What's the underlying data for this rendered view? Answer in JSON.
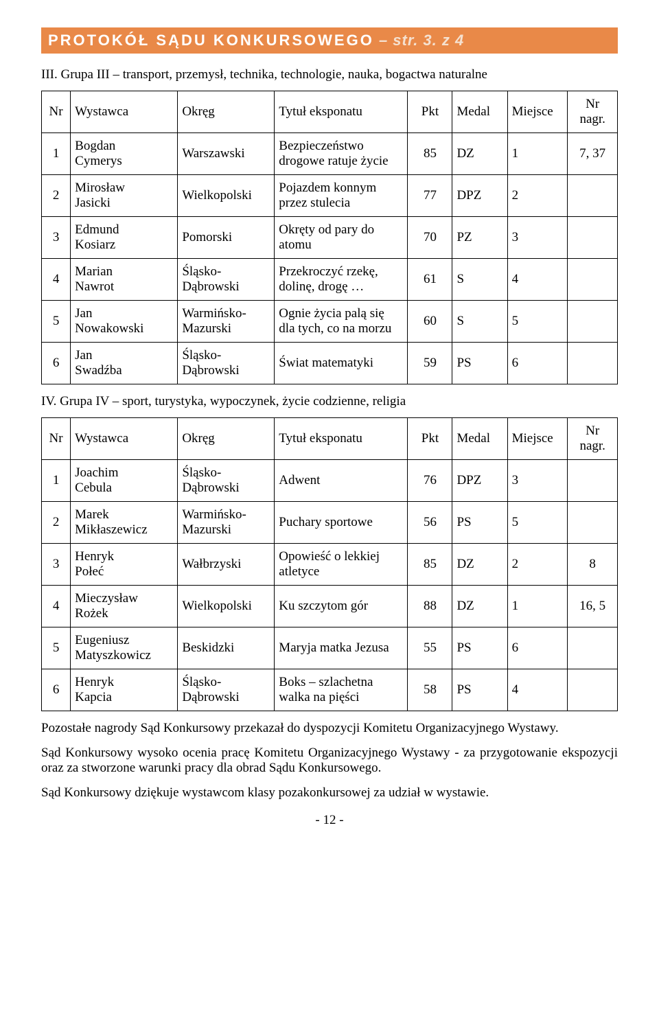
{
  "header": {
    "main": "PROTOKÓŁ  SĄDU  KONKURSOWEGO",
    "sub": " – str. 3. z 4"
  },
  "section3_heading": "III. Grupa III – transport, przemysł, technika, technologie, nauka, bogactwa naturalne",
  "common_headers": {
    "nr": "Nr",
    "wystawca": "Wystawca",
    "okreg": "Okręg",
    "tytul": "Tytuł eksponatu",
    "pkt": "Pkt",
    "medal": "Medal",
    "miejsce": "Miejsce",
    "nr_nagr": "Nr nagr."
  },
  "table3": [
    {
      "nr": "1",
      "wyst": "Bogdan\nCymerys",
      "okr": "Warszawski",
      "tyt": "Bezpieczeństwo drogowe ratuje życie",
      "pkt": "85",
      "med": "DZ",
      "mie": "1",
      "nagr": "7, 37"
    },
    {
      "nr": "2",
      "wyst": "Mirosław\nJasicki",
      "okr": "Wielkopolski",
      "tyt": "Pojazdem konnym przez stulecia",
      "pkt": "77",
      "med": "DPZ",
      "mie": "2",
      "nagr": ""
    },
    {
      "nr": "3",
      "wyst": "Edmund\nKosiarz",
      "okr": "Pomorski",
      "tyt": "Okręty od pary do atomu",
      "pkt": "70",
      "med": "PZ",
      "mie": "3",
      "nagr": ""
    },
    {
      "nr": "4",
      "wyst": "Marian\nNawrot",
      "okr": "Śląsko-\nDąbrowski",
      "tyt": "Przekroczyć rzekę, dolinę, drogę …",
      "pkt": "61",
      "med": "S",
      "mie": "4",
      "nagr": ""
    },
    {
      "nr": "5",
      "wyst": "Jan\nNowakowski",
      "okr": "Warmińsko-\nMazurski",
      "tyt": "Ognie życia palą się dla tych, co na morzu",
      "pkt": "60",
      "med": "S",
      "mie": "5",
      "nagr": ""
    },
    {
      "nr": "6",
      "wyst": "Jan\nSwadźba",
      "okr": "Śląsko-\nDąbrowski",
      "tyt": "Świat matematyki",
      "pkt": "59",
      "med": "PS",
      "mie": "6",
      "nagr": ""
    }
  ],
  "section4_heading": "IV. Grupa IV – sport, turystyka, wypoczynek, życie codzienne, religia",
  "table4": [
    {
      "nr": "1",
      "wyst": "Joachim\nCebula",
      "okr": "Śląsko-\nDąbrowski",
      "tyt": "Adwent",
      "pkt": "76",
      "med": "DPZ",
      "mie": "3",
      "nagr": ""
    },
    {
      "nr": "2",
      "wyst": "Marek\nMikłaszewicz",
      "okr": "Warmińsko-\nMazurski",
      "tyt": "Puchary sportowe",
      "pkt": "56",
      "med": "PS",
      "mie": "5",
      "nagr": ""
    },
    {
      "nr": "3",
      "wyst": "Henryk\nPołeć",
      "okr": "Wałbrzyski",
      "tyt": "Opowieść o lekkiej atletyce",
      "pkt": "85",
      "med": "DZ",
      "mie": "2",
      "nagr": "8"
    },
    {
      "nr": "4",
      "wyst": "Mieczysław\nRożek",
      "okr": "Wielkopolski",
      "tyt": "Ku szczytom gór",
      "pkt": "88",
      "med": "DZ",
      "mie": "1",
      "nagr": "16, 5"
    },
    {
      "nr": "5",
      "wyst": "Eugeniusz\nMatyszkowicz",
      "okr": "Beskidzki",
      "tyt": "Maryja matka Jezusa",
      "pkt": "55",
      "med": "PS",
      "mie": "6",
      "nagr": ""
    },
    {
      "nr": "6",
      "wyst": "Henryk\nKapcia",
      "okr": "Śląsko-\nDąbrowski",
      "tyt": "Boks – szlachetna walka na pięści",
      "pkt": "58",
      "med": "PS",
      "mie": "4",
      "nagr": ""
    }
  ],
  "para1": "Pozostałe nagrody Sąd Konkursowy przekazał do dyspozycji Komitetu Organizacyjnego Wystawy.",
  "para2": "Sąd Konkursowy wysoko ocenia pracę Komitetu Organizacyjnego Wystawy - za przygotowanie ekspozycji oraz za stworzone warunki pracy dla obrad Sądu Konkursowego.",
  "para3": "Sąd Konkursowy dziękuje wystawcom klasy pozakonkursowej za udział w wystawie.",
  "page_number": "- 12 -"
}
